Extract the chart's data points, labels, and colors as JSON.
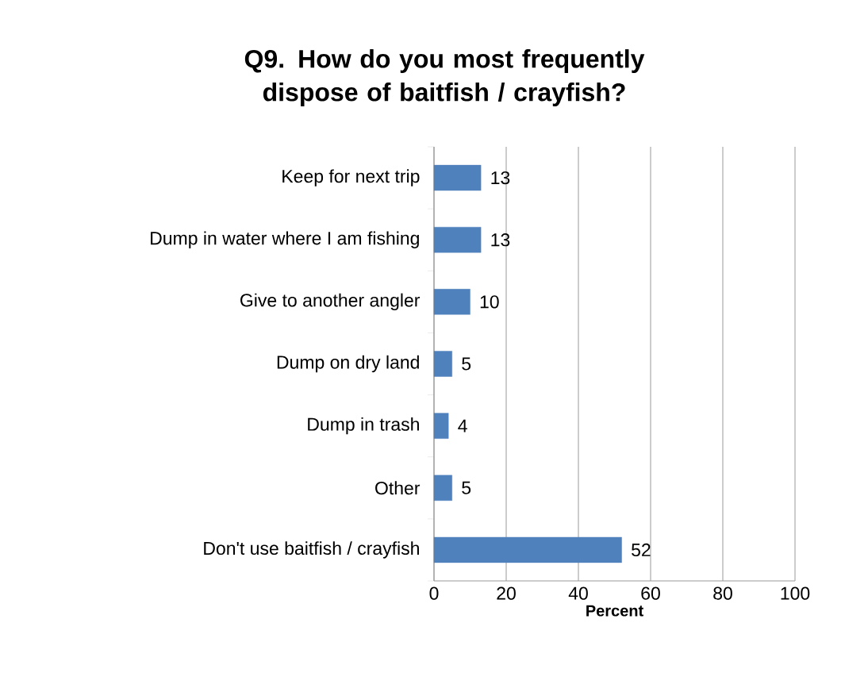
{
  "chart_data": {
    "type": "bar",
    "orientation": "horizontal",
    "title": "Q9. How do you most frequently dispose of baitfish / crayfish?",
    "xlabel": "Percent",
    "categories": [
      "Keep for next trip",
      "Dump in water where I am fishing",
      "Give to another angler",
      "Dump on dry land",
      "Dump in trash",
      "Other",
      "Don't use baitfish / crayfish"
    ],
    "values": [
      13,
      13,
      10,
      5,
      4,
      5,
      52
    ],
    "color": "#4f81bd",
    "xlim": [
      0,
      100
    ],
    "xticks": [
      0,
      20,
      40,
      60,
      80,
      100
    ],
    "grid": "x",
    "data_labels": true
  }
}
